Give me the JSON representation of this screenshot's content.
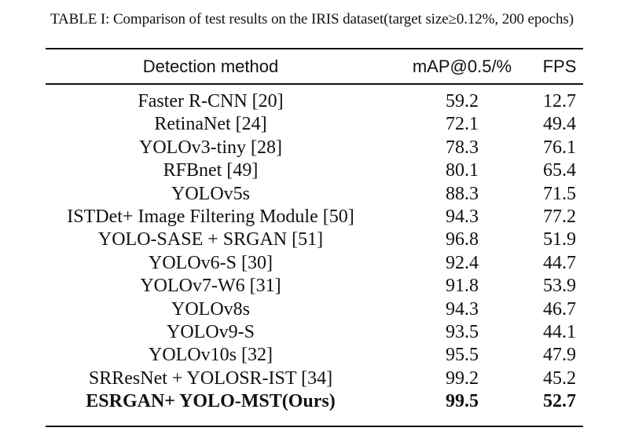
{
  "table": {
    "caption": "TABLE I: Comparison of test results on the IRIS dataset(target size≥0.12%, 200 epochs)",
    "headers": [
      "Detection method",
      "mAP@0.5/%",
      "FPS"
    ],
    "rows": [
      {
        "method": "Faster R-CNN [20]",
        "map": "59.2",
        "fps": "12.7"
      },
      {
        "method": "RetinaNet [24]",
        "map": "72.1",
        "fps": "49.4"
      },
      {
        "method": "YOLOv3-tiny [28]",
        "map": "78.3",
        "fps": "76.1"
      },
      {
        "method": "RFBnet [49]",
        "map": "80.1",
        "fps": "65.4"
      },
      {
        "method": "YOLOv5s",
        "map": "88.3",
        "fps": "71.5"
      },
      {
        "method": "ISTDet+ Image Filtering Module [50]",
        "map": "94.3",
        "fps": "77.2"
      },
      {
        "method": "YOLO-SASE + SRGAN [51]",
        "map": "96.8",
        "fps": "51.9"
      },
      {
        "method": "YOLOv6-S [30]",
        "map": "92.4",
        "fps": "44.7"
      },
      {
        "method": "YOLOv7-W6 [31]",
        "map": "91.8",
        "fps": "53.9"
      },
      {
        "method": "YOLOv8s",
        "map": "94.3",
        "fps": "46.7"
      },
      {
        "method": "YOLOv9-S",
        "map": "93.5",
        "fps": "44.1"
      },
      {
        "method": "YOLOv10s [32]",
        "map": "95.5",
        "fps": "47.9"
      },
      {
        "method": "SRResNet + YOLOSR-IST [34]",
        "map": "99.2",
        "fps": "45.2"
      },
      {
        "method": "ESRGAN+ YOLO-MST(Ours)",
        "map": "99.5",
        "fps": "52.7",
        "bold": true
      }
    ]
  }
}
